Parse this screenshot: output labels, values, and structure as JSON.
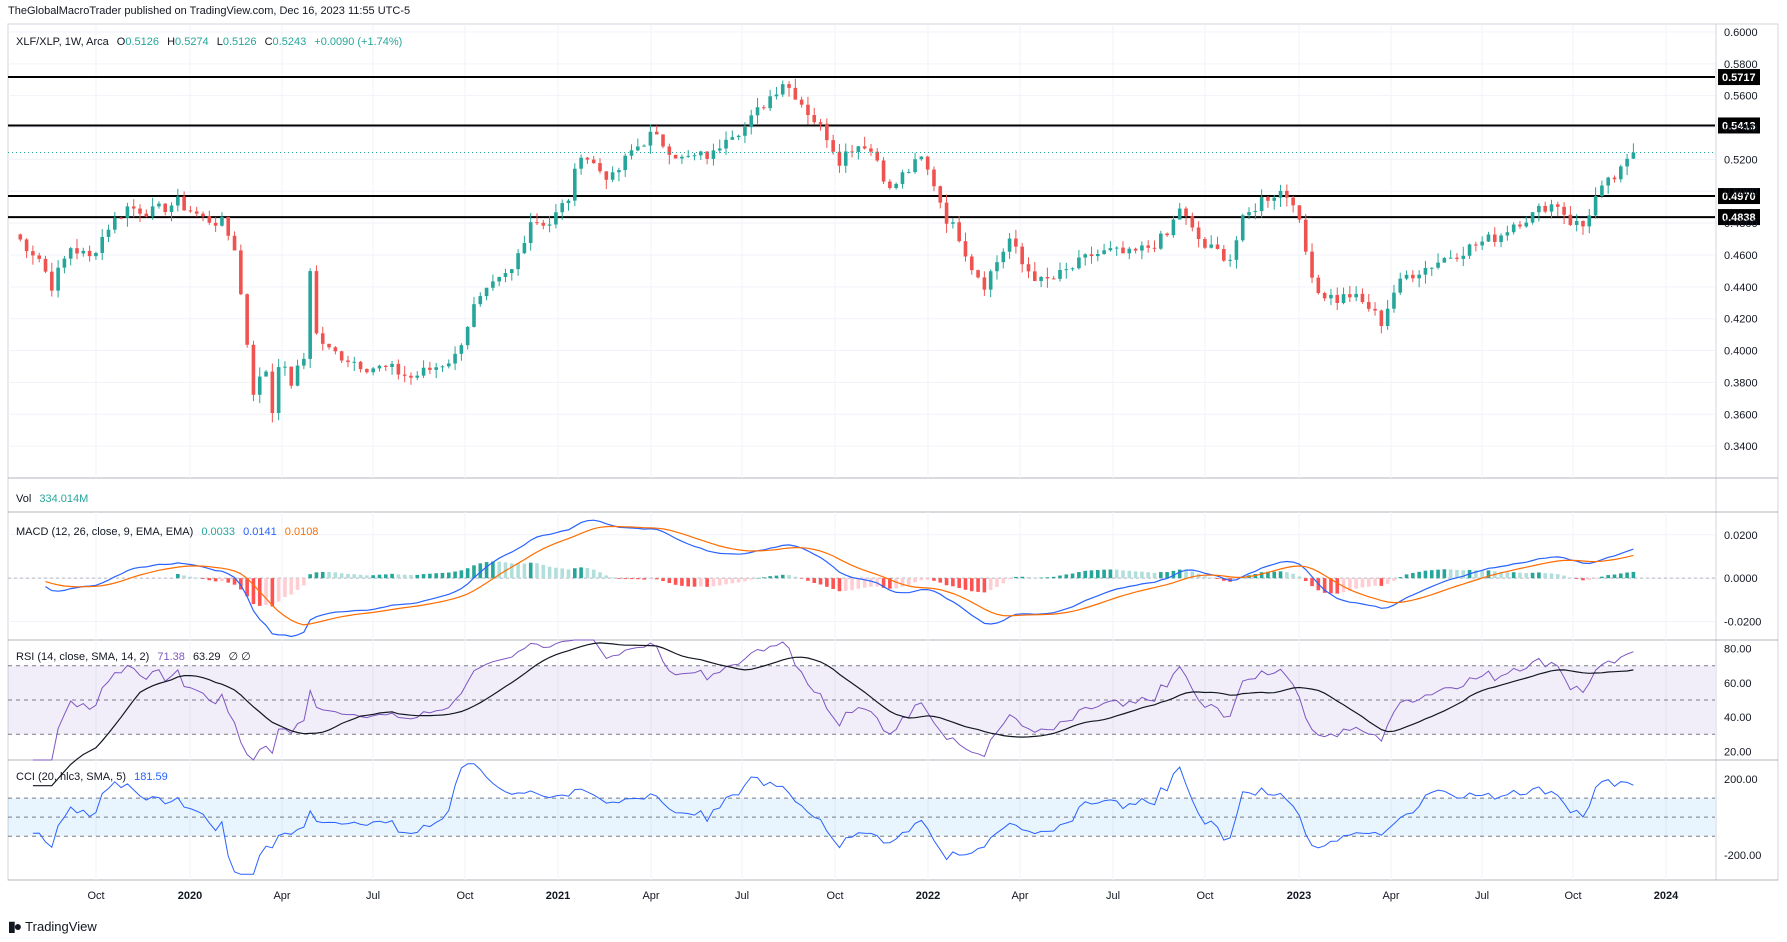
{
  "header": {
    "published": "TheGlobalMacroTrader published on TradingView.com, Dec 16, 2023 11:55 UTC-5"
  },
  "ohlc": {
    "symbol": "XLF/XLP, 1W, Arca",
    "o_label": "O",
    "o": "0.5126",
    "h_label": "H",
    "h": "0.5274",
    "l_label": "L",
    "l": "0.5126",
    "c_label": "C",
    "c": "0.5243",
    "change": "+0.0090 (+1.74%)"
  },
  "vol": {
    "label": "Vol",
    "value": "334.014M"
  },
  "macd": {
    "label": "MACD (12, 26, close, 9, EMA, EMA)",
    "hist": "0.0033",
    "macd": "0.0141",
    "signal": "0.0108"
  },
  "rsi": {
    "label": "RSI (14, close, SMA, 14, 2)",
    "rsi": "71.38",
    "sma": "63.29",
    "extra": "∅ ∅"
  },
  "cci": {
    "label": "CCI (20, hlc3, SMA, 5)",
    "value": "181.59"
  },
  "footer": {
    "brand": "TradingView"
  },
  "colors": {
    "up": "#26a69a",
    "down": "#ef5350",
    "macd": "#2962ff",
    "signal": "#ff6d00",
    "rsi": "#7e57c2",
    "cci": "#2962ff",
    "grid": "#f0f3fa"
  },
  "chart_data": [
    {
      "type": "candlestick",
      "title": "XLF/XLP, 1W, Arca",
      "y_range": [
        0.32,
        0.605
      ],
      "y_ticks": [
        "0.6000",
        "0.5800",
        "0.5600",
        "0.5400",
        "0.5200",
        "0.5000",
        "0.4800",
        "0.4600",
        "0.4400",
        "0.4200",
        "0.4000",
        "0.3800",
        "0.3600",
        "0.3400"
      ],
      "x_ticks": [
        "Oct",
        "2020",
        "Apr",
        "Jul",
        "Oct",
        "2021",
        "Apr",
        "Jul",
        "Oct",
        "2022",
        "Apr",
        "Jul",
        "Oct",
        "2023",
        "Apr",
        "Jul",
        "Oct",
        "2024"
      ],
      "horizontal_levels": [
        {
          "value": 0.5717,
          "label": "0.5717"
        },
        {
          "value": 0.5413,
          "label": "0.5413"
        },
        {
          "value": 0.497,
          "label": "0.4970"
        },
        {
          "value": 0.4838,
          "label": "0.4838"
        }
      ],
      "last_price": 0.5243,
      "anchors": [
        [
          0,
          0.473
        ],
        [
          4,
          0.458
        ],
        [
          6,
          0.441
        ],
        [
          9,
          0.465
        ],
        [
          12,
          0.458
        ],
        [
          15,
          0.478
        ],
        [
          18,
          0.49
        ],
        [
          22,
          0.487
        ],
        [
          26,
          0.493
        ],
        [
          30,
          0.483
        ],
        [
          33,
          0.48
        ],
        [
          35,
          0.465
        ],
        [
          36,
          0.435
        ],
        [
          38,
          0.375
        ],
        [
          40,
          0.388
        ],
        [
          41,
          0.362
        ],
        [
          42,
          0.393
        ],
        [
          44,
          0.38
        ],
        [
          46,
          0.395
        ],
        [
          47,
          0.452
        ],
        [
          48,
          0.41
        ],
        [
          50,
          0.4
        ],
        [
          53,
          0.395
        ],
        [
          56,
          0.39
        ],
        [
          60,
          0.388
        ],
        [
          63,
          0.383
        ],
        [
          67,
          0.39
        ],
        [
          70,
          0.396
        ],
        [
          73,
          0.427
        ],
        [
          76,
          0.44
        ],
        [
          79,
          0.45
        ],
        [
          82,
          0.482
        ],
        [
          85,
          0.48
        ],
        [
          88,
          0.496
        ],
        [
          90,
          0.525
        ],
        [
          93,
          0.513
        ],
        [
          95,
          0.508
        ],
        [
          98,
          0.525
        ],
        [
          101,
          0.535
        ],
        [
          103,
          0.53
        ],
        [
          106,
          0.52
        ],
        [
          109,
          0.522
        ],
        [
          111,
          0.523
        ],
        [
          113,
          0.536
        ],
        [
          116,
          0.54
        ],
        [
          119,
          0.555
        ],
        [
          122,
          0.569
        ],
        [
          124,
          0.561
        ],
        [
          126,
          0.55
        ],
        [
          129,
          0.535
        ],
        [
          131,
          0.52
        ],
        [
          133,
          0.528
        ],
        [
          135,
          0.53
        ],
        [
          137,
          0.52
        ],
        [
          139,
          0.5
        ],
        [
          141,
          0.51
        ],
        [
          144,
          0.52
        ],
        [
          146,
          0.505
        ],
        [
          148,
          0.483
        ],
        [
          150,
          0.472
        ],
        [
          152,
          0.453
        ],
        [
          154,
          0.442
        ],
        [
          156,
          0.456
        ],
        [
          158,
          0.47
        ],
        [
          160,
          0.454
        ],
        [
          163,
          0.443
        ],
        [
          165,
          0.445
        ],
        [
          168,
          0.452
        ],
        [
          171,
          0.46
        ],
        [
          174,
          0.462
        ],
        [
          177,
          0.46
        ],
        [
          180,
          0.465
        ],
        [
          183,
          0.472
        ],
        [
          185,
          0.49
        ],
        [
          187,
          0.475
        ],
        [
          189,
          0.465
        ],
        [
          191,
          0.462
        ],
        [
          193,
          0.458
        ],
        [
          195,
          0.481
        ],
        [
          198,
          0.495
        ],
        [
          201,
          0.5
        ],
        [
          203,
          0.495
        ],
        [
          205,
          0.462
        ],
        [
          207,
          0.437
        ],
        [
          210,
          0.432
        ],
        [
          212,
          0.435
        ],
        [
          215,
          0.427
        ],
        [
          217,
          0.418
        ],
        [
          219,
          0.437
        ],
        [
          221,
          0.447
        ],
        [
          224,
          0.452
        ],
        [
          227,
          0.458
        ],
        [
          230,
          0.463
        ],
        [
          233,
          0.468
        ],
        [
          236,
          0.473
        ],
        [
          238,
          0.48
        ],
        [
          241,
          0.485
        ],
        [
          243,
          0.491
        ],
        [
          245,
          0.492
        ],
        [
          247,
          0.481
        ],
        [
          249,
          0.478
        ],
        [
          251,
          0.496
        ],
        [
          253,
          0.505
        ],
        [
          255,
          0.512
        ],
        [
          257,
          0.524
        ]
      ]
    },
    {
      "type": "bar+line",
      "title": "MACD (12, 26, close, 9, EMA, EMA)",
      "y_range": [
        -0.0285,
        0.0305
      ],
      "y_ticks": [
        "0.0200",
        "0.0000",
        "-0.0200"
      ],
      "series": [
        {
          "name": "MACD",
          "values": []
        },
        {
          "name": "Signal",
          "values": []
        },
        {
          "name": "Histogram",
          "values": []
        }
      ]
    },
    {
      "type": "line",
      "title": "RSI (14, close, SMA, 14, 2)",
      "y_range": [
        15,
        85
      ],
      "bands": [
        70,
        50,
        30
      ],
      "y_ticks": [
        "80.00",
        "60.00",
        "40.00",
        "20.00"
      ],
      "series": [
        {
          "name": "RSI",
          "values": []
        },
        {
          "name": "RSI SMA",
          "values": []
        }
      ]
    },
    {
      "type": "line",
      "title": "CCI (20, hlc3, SMA, 5)",
      "y_range": [
        -330,
        300
      ],
      "bands": [
        100,
        0,
        -100
      ],
      "y_ticks": [
        "200.00",
        "-200.00"
      ],
      "series": [
        {
          "name": "CCI",
          "values": []
        }
      ]
    }
  ]
}
